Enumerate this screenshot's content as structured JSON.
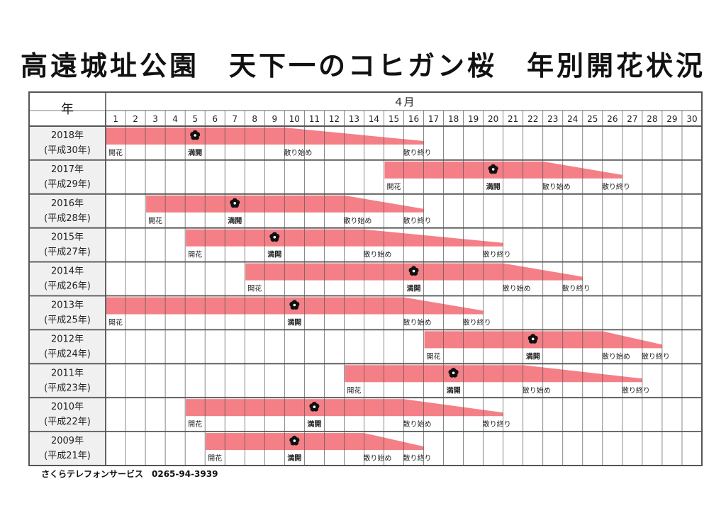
{
  "title": "高遠城址公園　天下一のコヒガン桜　年別開花状況",
  "header": {
    "year_col": "年",
    "month": "４月"
  },
  "days": [
    "1",
    "2",
    "3",
    "4",
    "5",
    "6",
    "7",
    "8",
    "9",
    "10",
    "11",
    "12",
    "13",
    "14",
    "15",
    "16",
    "17",
    "18",
    "19",
    "20",
    "21",
    "22",
    "23",
    "24",
    "25",
    "26",
    "27",
    "28",
    "29",
    "30"
  ],
  "legend_labels": {
    "bloom": "開花",
    "full": "満開",
    "scatter_start": "散り始め",
    "scatter_end": "散り終り"
  },
  "colors": {
    "bar": "#f47f87",
    "grid": "#555555",
    "year_cell_bg": "#f0f0f0",
    "flower_icon": "#111111"
  },
  "flower_icon": "cherry-blossom-icon",
  "footer": "さくらテレフォンサービス　0265-94-3939",
  "chart_data": {
    "type": "gantt",
    "x_unit": "April day",
    "rows": [
      {
        "year": "2018年",
        "era": "(平成30年)",
        "bloom": 1,
        "full": 5,
        "scatter_start": 10,
        "scatter_end": 16
      },
      {
        "year": "2017年",
        "era": "(平成29年)",
        "bloom": 15,
        "full": 20,
        "scatter_start": 23,
        "scatter_end": 26
      },
      {
        "year": "2016年",
        "era": "(平成28年)",
        "bloom": 3,
        "full": 7,
        "scatter_start": 13,
        "scatter_end": 16
      },
      {
        "year": "2015年",
        "era": "(平成27年)",
        "bloom": 5,
        "full": 9,
        "scatter_start": 14,
        "scatter_end": 20
      },
      {
        "year": "2014年",
        "era": "(平成26年)",
        "bloom": 8,
        "full": 16,
        "scatter_start": 21,
        "scatter_end": 24
      },
      {
        "year": "2013年",
        "era": "(平成25年)",
        "bloom": 1,
        "full": 10,
        "scatter_start": 16,
        "scatter_end": 19
      },
      {
        "year": "2012年",
        "era": "(平成24年)",
        "bloom": 17,
        "full": 22,
        "scatter_start": 26,
        "scatter_end": 28
      },
      {
        "year": "2011年",
        "era": "(平成23年)",
        "bloom": 13,
        "full": 18,
        "scatter_start": 22,
        "scatter_end": 27
      },
      {
        "year": "2010年",
        "era": "(平成22年)",
        "bloom": 5,
        "full": 11,
        "scatter_start": 16,
        "scatter_end": 20
      },
      {
        "year": "2009年",
        "era": "(平成21年)",
        "bloom": 6,
        "full": 10,
        "scatter_start": 14,
        "scatter_end": 16
      }
    ]
  }
}
